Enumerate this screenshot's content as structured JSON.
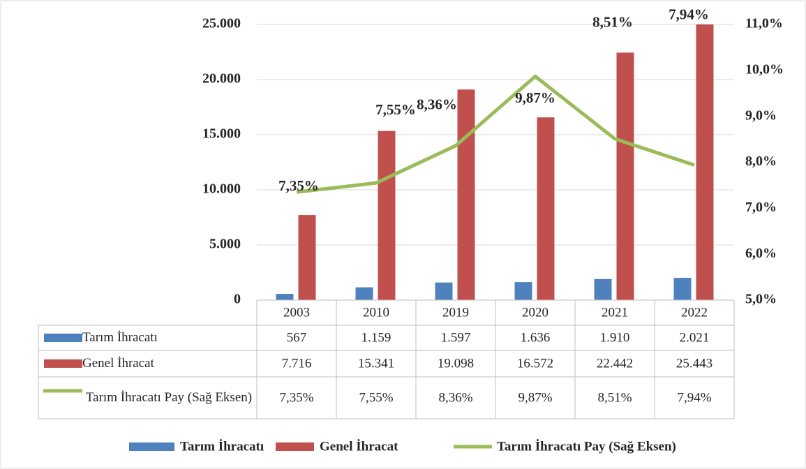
{
  "chart_data": {
    "type": "bar",
    "categories": [
      "2003",
      "2010",
      "2019",
      "2020",
      "2021",
      "2022"
    ],
    "series": [
      {
        "name": "Tarım İhracatı",
        "color": "#4f81bd",
        "values": [
          567,
          1159,
          1597,
          1636,
          1910,
          2021
        ],
        "value_labels": [
          "567",
          "1.159",
          "1.597",
          "1.636",
          "1.910",
          "2.021"
        ]
      },
      {
        "name": "Genel İhracat",
        "color": "#c0504d",
        "values": [
          7716,
          15341,
          19098,
          16572,
          22442,
          25443
        ],
        "value_labels": [
          "7.716",
          "15.341",
          "19.098",
          "16.572",
          "22.442",
          "25.443"
        ]
      },
      {
        "name": "Tarım İhracatı Pay (Sağ Eksen)",
        "color": "#9bbb59",
        "type": "line",
        "axis": "y2",
        "values": [
          7.35,
          7.55,
          8.36,
          9.87,
          8.51,
          7.94
        ],
        "value_labels": [
          "7,35%",
          "7,55%",
          "8,36%",
          "9,87%",
          "8,51%",
          "7,94%"
        ]
      }
    ],
    "ylim": [
      0,
      25000
    ],
    "yticks": [
      0,
      {
        "value": 5000,
        "label": "5.000"
      },
      {
        "value": 10000,
        "label": "10.000"
      },
      {
        "value": 15000,
        "label": "15.000"
      },
      {
        "value": 20000,
        "label": "20.000"
      },
      {
        "value": 25000,
        "label": "25.000"
      }
    ],
    "y2lim": [
      5,
      11
    ],
    "y2ticks": [
      {
        "value": 5,
        "label": "5,0%"
      },
      {
        "value": 6,
        "label": "6,0%"
      },
      {
        "value": 7,
        "label": "7,0%"
      },
      {
        "value": 8,
        "label": "8,0%"
      },
      {
        "value": 9,
        "label": "9,0%"
      },
      {
        "value": 10,
        "label": "10,0%"
      },
      {
        "value": 11,
        "label": "11,0%"
      }
    ],
    "grid": true,
    "legend": "bottom"
  }
}
